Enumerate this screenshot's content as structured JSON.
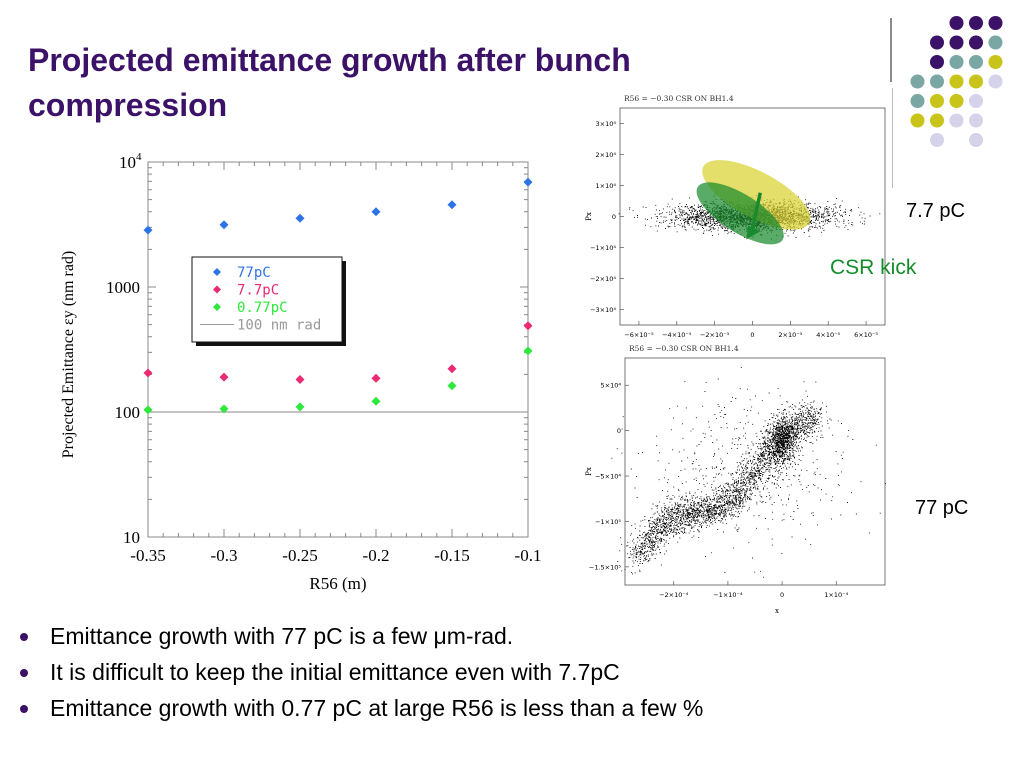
{
  "slide": {
    "title": "Projected emittance growth after bunch compression",
    "label_77pc_small": "7.7 pC",
    "label_77pc": "77 pC",
    "csr_kick": "CSR kick",
    "bullets": [
      "Emittance growth with 77 pC is a few μm-rad.",
      "It is difficult to keep the initial emittance even with 7.7pC",
      "Emittance growth with 0.77 pC at large R56 is less than a few %"
    ]
  },
  "decor": {
    "colors": {
      "purple": "#3b1267",
      "teal": "#7aa6a4",
      "yellow": "#c9c41a",
      "lavender": "#d5d3ea"
    }
  },
  "chart_data": [
    {
      "type": "scatter",
      "title": "",
      "xlabel": "R56 (m)",
      "ylabel": "Projected Emittance εy (nm rad)",
      "x_scale": "linear",
      "y_scale": "log",
      "xlim": [
        -0.35,
        -0.1
      ],
      "ylim": [
        10,
        10000
      ],
      "xticks": [
        "-0.35",
        "-0.3",
        "-0.25",
        "-0.2",
        "-0.15",
        "-0.1"
      ],
      "yticks": [
        "10",
        "100",
        "1000",
        "10^4"
      ],
      "legend_position": "inside upper-left",
      "series": [
        {
          "name": "77pC",
          "color": "#2f73e8",
          "x": [
            -0.35,
            -0.3,
            -0.25,
            -0.2,
            -0.15,
            -0.1
          ],
          "y": [
            2850,
            3150,
            3550,
            4000,
            4550,
            6900
          ]
        },
        {
          "name": "7.7pC",
          "color": "#ea2a72",
          "x": [
            -0.35,
            -0.3,
            -0.25,
            -0.2,
            -0.15,
            -0.1
          ],
          "y": [
            205,
            190,
            182,
            186,
            222,
            490
          ]
        },
        {
          "name": "0.77pC",
          "color": "#2ee83b",
          "x": [
            -0.35,
            -0.3,
            -0.25,
            -0.2,
            -0.15,
            -0.1
          ],
          "y": [
            104,
            106,
            110,
            122,
            162,
            308
          ]
        }
      ],
      "reference_line": {
        "name": "100 nm rad",
        "y": 100,
        "color": "#aaaaaa"
      }
    },
    {
      "type": "scatter",
      "title": "R56 = −0.30 CSR ON BH1.4",
      "xlabel": "",
      "ylabel": "Px",
      "xticks": [
        "−6×10⁻⁵",
        "−4×10⁻⁵",
        "−2×10⁻⁵",
        "0",
        "2×10⁻⁵",
        "4×10⁻⁵",
        "6×10⁻⁵"
      ],
      "yticks": [
        "3×10⁴",
        "2×10⁴",
        "1×10⁴",
        "0",
        "−1×10⁴",
        "−2×10⁴",
        "−3×10⁴"
      ],
      "xlim": [
        -7e-05,
        7e-05
      ],
      "ylim": [
        -35000,
        35000
      ],
      "particle_distribution": "dense diagonal band from upper-left to lower-right",
      "overlays": [
        {
          "name": "initial ellipse",
          "color": "#d8d230"
        },
        {
          "name": "kicked ellipse",
          "color": "#1a8a2e"
        }
      ]
    },
    {
      "type": "scatter",
      "title": "R56 = −0.30 CSR ON BH1.4",
      "xlabel": "x",
      "ylabel": "Px",
      "xticks": [
        "−2×10⁻⁴",
        "−1×10⁻⁴",
        "0",
        "1×10⁻⁴"
      ],
      "yticks": [
        "5×10⁴",
        "0",
        "−5×10⁴",
        "−1×10⁵",
        "−1.5×10⁵"
      ],
      "xlim": [
        -0.00029,
        0.00019
      ],
      "ylim": [
        -170000,
        80000
      ],
      "particle_distribution": "rising band from lower-left to upper-right with a dense cluster near x=0"
    }
  ]
}
